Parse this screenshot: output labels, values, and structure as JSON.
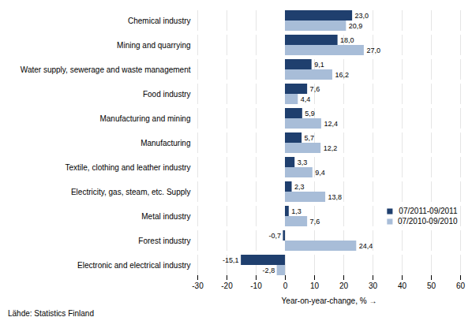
{
  "chart_data": {
    "type": "bar",
    "orientation": "horizontal",
    "categories": [
      "Electronic and electrical industry",
      "Forest industry",
      "Metal industry",
      "Electricity, gas, steam, etc. Supply",
      "Textile, clothing and leather industry",
      "Manufacturing",
      "Manufacturing and mining",
      "Food industry",
      "Water supply, sewerage and waste management",
      "Mining and quarrying",
      "Chemical industry"
    ],
    "series": [
      {
        "name": "07/2011-09/2011",
        "color": "#1F3F6E",
        "values": [
          -15.1,
          -0.7,
          1.3,
          2.3,
          3.3,
          5.7,
          5.9,
          7.6,
          9.1,
          18.0,
          23.0
        ],
        "value_labels": [
          "-15,1",
          "-0,7",
          "1,3",
          "2,3",
          "3,3",
          "5,7",
          "5,9",
          "7,6",
          "9,1",
          "18,0",
          "23,0"
        ]
      },
      {
        "name": "07/2010-09/2010",
        "color": "#A8BDD8",
        "values": [
          -2.8,
          24.4,
          7.6,
          13.8,
          9.4,
          12.2,
          12.4,
          4.4,
          16.2,
          27.0,
          20.9
        ],
        "value_labels": [
          "-2,8",
          "24,4",
          "7,6",
          "13,8",
          "9,4",
          "12,2",
          "12,4",
          "4,4",
          "16,2",
          "27,0",
          "20,9"
        ]
      }
    ],
    "xlabel": "Year-on-year-change, %",
    "xlim": [
      -30,
      60
    ],
    "xticks": [
      -30,
      -20,
      -10,
      0,
      10,
      20,
      30,
      40,
      50,
      60
    ],
    "grid": true,
    "legend": "lower right",
    "data_labels": true,
    "source": "Lähde: Statistics Finland"
  }
}
